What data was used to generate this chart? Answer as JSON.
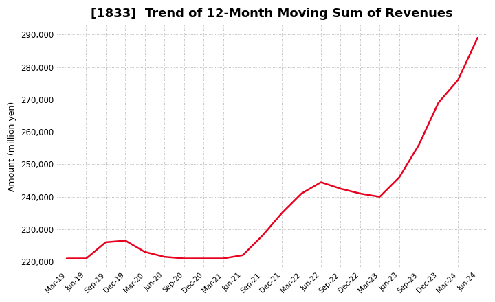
{
  "title": "[1833]  Trend of 12-Month Moving Sum of Revenues",
  "ylabel": "Amount (million yen)",
  "line_color": "#e8001e",
  "background_color": "#ffffff",
  "grid_color": "#aaaaaa",
  "ylim": [
    218000,
    293000
  ],
  "yticks": [
    220000,
    230000,
    240000,
    250000,
    260000,
    270000,
    280000,
    290000
  ],
  "x_labels": [
    "Mar-19",
    "Jun-19",
    "Sep-19",
    "Dec-19",
    "Mar-20",
    "Jun-20",
    "Sep-20",
    "Dec-20",
    "Mar-21",
    "Jun-21",
    "Sep-21",
    "Dec-21",
    "Mar-22",
    "Jun-22",
    "Sep-22",
    "Dec-22",
    "Mar-23",
    "Jun-23",
    "Sep-23",
    "Dec-23",
    "Mar-24",
    "Jun-24"
  ],
  "values": [
    221000,
    221000,
    226000,
    226500,
    223000,
    221500,
    221000,
    221000,
    221000,
    222000,
    228000,
    235000,
    241000,
    244500,
    242500,
    241000,
    240000,
    246000,
    256000,
    269000,
    276000,
    289000
  ],
  "title_fontsize": 13,
  "label_fontsize": 9,
  "tick_fontsize": 8.5,
  "xtick_fontsize": 7.5
}
